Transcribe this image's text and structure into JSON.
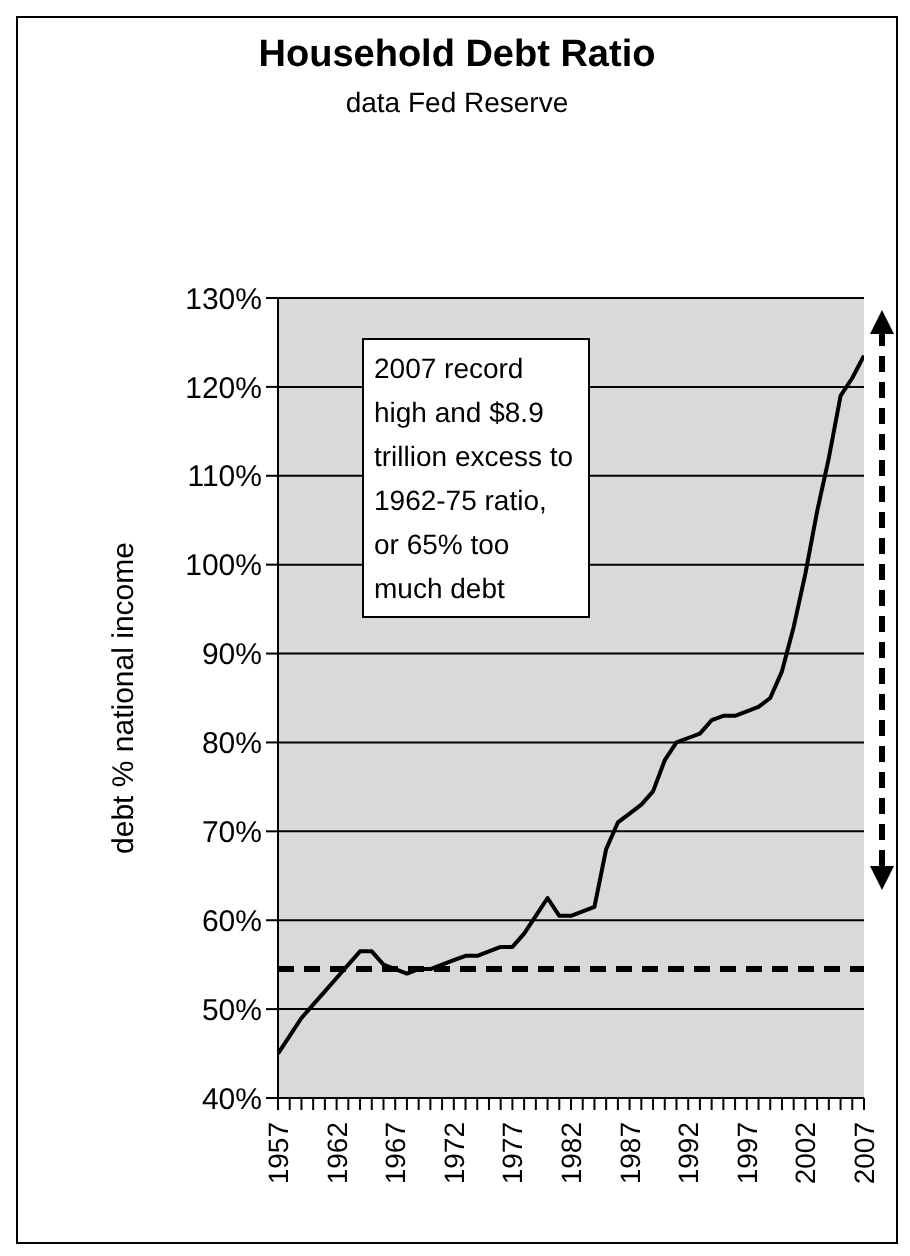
{
  "chart_data": {
    "type": "line",
    "title": "Household Debt Ratio",
    "subtitle": "data Fed Reserve",
    "ylabel": "debt % national income",
    "annotations": [
      "2007 record high and $8.9 trillion excess to 1962-75 ratio, or 65% too much debt"
    ],
    "x": [
      1957,
      1958,
      1959,
      1960,
      1961,
      1962,
      1963,
      1964,
      1965,
      1966,
      1967,
      1968,
      1969,
      1970,
      1971,
      1972,
      1973,
      1974,
      1975,
      1976,
      1977,
      1978,
      1979,
      1980,
      1981,
      1982,
      1983,
      1984,
      1985,
      1986,
      1987,
      1988,
      1989,
      1990,
      1991,
      1992,
      1993,
      1994,
      1995,
      1996,
      1997,
      1998,
      1999,
      2000,
      2001,
      2002,
      2003,
      2004,
      2005,
      2006,
      2007
    ],
    "series": [
      {
        "color": "#000000",
        "values": [
          45,
          47,
          49,
          50.5,
          52,
          53.5,
          55,
          56.5,
          56.5,
          55,
          54.5,
          54,
          54.5,
          54.5,
          55,
          55.5,
          56,
          56,
          56.5,
          57,
          57,
          58.5,
          60.5,
          62.5,
          60.5,
          60.5,
          61,
          61.5,
          68,
          71,
          72,
          73,
          74.5,
          78,
          80,
          80.5,
          81,
          82.5,
          83,
          83,
          83.5,
          84,
          85,
          88,
          93,
          99,
          106,
          112,
          119,
          121,
          123.5
        ]
      }
    ],
    "xlim": [
      1957,
      2007
    ],
    "xticks": [
      1957,
      {
        "value": 1958,
        "label": null
      },
      {
        "value": 1959,
        "label": null
      },
      {
        "value": 1960,
        "label": null
      },
      {
        "value": 1961,
        "label": null
      },
      1962,
      {
        "value": 1963,
        "label": null
      },
      {
        "value": 1964,
        "label": null
      },
      {
        "value": 1965,
        "label": null
      },
      {
        "value": 1966,
        "label": null
      },
      1967,
      {
        "value": 1968,
        "label": null
      },
      {
        "value": 1969,
        "label": null
      },
      {
        "value": 1970,
        "label": null
      },
      {
        "value": 1971,
        "label": null
      },
      1972,
      {
        "value": 1973,
        "label": null
      },
      {
        "value": 1974,
        "label": null
      },
      {
        "value": 1975,
        "label": null
      },
      {
        "value": 1976,
        "label": null
      },
      1977,
      {
        "value": 1978,
        "label": null
      },
      {
        "value": 1979,
        "label": null
      },
      {
        "value": 1980,
        "label": null
      },
      {
        "value": 1981,
        "label": null
      },
      1982,
      {
        "value": 1983,
        "label": null
      },
      {
        "value": 1984,
        "label": null
      },
      {
        "value": 1985,
        "label": null
      },
      {
        "value": 1986,
        "label": null
      },
      1987,
      {
        "value": 1988,
        "label": null
      },
      {
        "value": 1989,
        "label": null
      },
      {
        "value": 1990,
        "label": null
      },
      {
        "value": 1991,
        "label": null
      },
      1992,
      {
        "value": 1993,
        "label": null
      },
      {
        "value": 1994,
        "label": null
      },
      {
        "value": 1995,
        "label": null
      },
      {
        "value": 1996,
        "label": null
      },
      1997,
      {
        "value": 1998,
        "label": null
      },
      {
        "value": 1999,
        "label": null
      },
      {
        "value": 2000,
        "label": null
      },
      {
        "value": 2001,
        "label": null
      },
      2002,
      {
        "value": 2003,
        "label": null
      },
      {
        "value": 2004,
        "label": null
      },
      {
        "value": 2005,
        "label": null
      },
      {
        "value": 2006,
        "label": null
      },
      2007
    ],
    "ylim": [
      40,
      130
    ],
    "yticks": [
      {
        "value": 40,
        "label": "40%"
      },
      {
        "value": 50,
        "label": "50%"
      },
      {
        "value": 60,
        "label": "60%"
      },
      {
        "value": 70,
        "label": "70%"
      },
      {
        "value": 80,
        "label": "80%"
      },
      {
        "value": 90,
        "label": "90%"
      },
      {
        "value": 100,
        "label": "100%"
      },
      {
        "value": 110,
        "label": "110%"
      },
      {
        "value": 120,
        "label": "120%"
      },
      {
        "value": 130,
        "label": "130%"
      }
    ],
    "ref_lines": [
      {
        "axis": "y",
        "value": 54.5,
        "line_style": "dashed",
        "color": "#000000"
      }
    ],
    "grid": "y",
    "marker": "none",
    "line_style": "solid"
  }
}
